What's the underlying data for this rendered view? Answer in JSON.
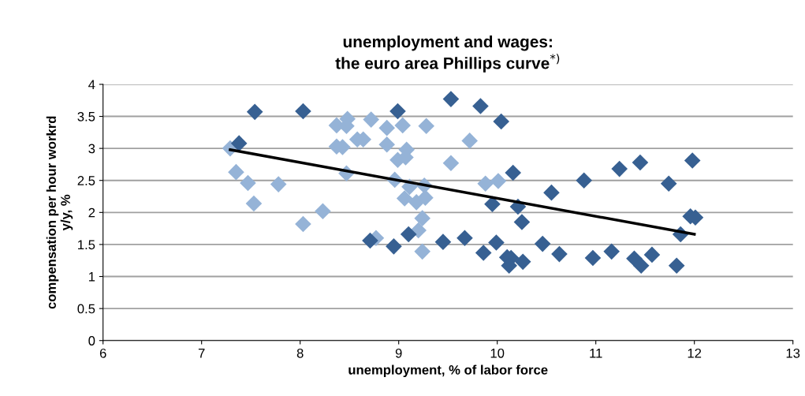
{
  "chart_data": {
    "type": "scatter",
    "title": "unemployment and wages:\nthe euro area Phillips curve$^{*)}$",
    "xlabel": "unemployment, % of labor force",
    "ylabel": "compensation per hour workrd\ny/y, %",
    "marker": "diamond",
    "grid": "y",
    "legend": false,
    "xlim": [
      6,
      13
    ],
    "xticks": [
      6,
      7,
      8,
      9,
      10,
      11,
      12,
      13
    ],
    "ylim": [
      0,
      4
    ],
    "yticks": [
      0,
      0.5,
      1,
      1.5,
      2,
      2.5,
      3,
      3.5,
      4
    ],
    "series": [
      {
        "color": "#95b3d7",
        "x": [
          7.29,
          7.35,
          7.47,
          7.53,
          7.78,
          8.03,
          8.23,
          8.37,
          8.47,
          8.48,
          8.37,
          8.43,
          8.47,
          8.58,
          8.64,
          8.72,
          8.88,
          9.04,
          8.88,
          8.96,
          8.99,
          9.07,
          9.06,
          8.77,
          9.28,
          9.08,
          9.11,
          9.26,
          9.18,
          9.27,
          9.24,
          9.2,
          9.24,
          9.53,
          9.72,
          9.88,
          10.01
        ],
        "values": [
          3.0,
          2.63,
          2.46,
          2.14,
          2.44,
          1.82,
          2.02,
          3.36,
          3.35,
          3.46,
          3.03,
          3.02,
          2.61,
          3.14,
          3.14,
          3.45,
          3.32,
          3.36,
          3.06,
          2.51,
          2.82,
          2.86,
          2.22,
          1.6,
          3.35,
          2.98,
          2.4,
          2.42,
          2.16,
          2.23,
          1.91,
          1.72,
          1.39,
          2.77,
          3.12,
          2.45,
          2.49
        ]
      },
      {
        "color": "#376092",
        "x": [
          7.38,
          7.54,
          8.03,
          8.99,
          8.71,
          8.95,
          9.1,
          9.53,
          9.83,
          10.04,
          10.16,
          9.95,
          10.21,
          10.25,
          10.55,
          10.88,
          9.45,
          9.67,
          9.86,
          9.99,
          10.1,
          10.14,
          10.12,
          10.26,
          10.46,
          10.63,
          10.97,
          11.24,
          11.45,
          11.74,
          11.98,
          11.96,
          12.01,
          11.86,
          11.16,
          11.39,
          11.46,
          11.57,
          11.82
        ],
        "values": [
          3.08,
          3.57,
          3.58,
          3.58,
          1.56,
          1.47,
          1.66,
          3.77,
          3.66,
          3.42,
          2.62,
          2.13,
          2.09,
          1.85,
          2.31,
          2.5,
          1.54,
          1.6,
          1.37,
          1.53,
          1.3,
          1.29,
          1.17,
          1.23,
          1.51,
          1.35,
          1.29,
          2.68,
          2.78,
          2.45,
          2.81,
          1.94,
          1.92,
          1.66,
          1.39,
          1.28,
          1.17,
          1.34,
          1.17
        ]
      },
      {
        "type": "line",
        "color": "#000000",
        "marker": "none",
        "x": [
          7.29,
          12.0
        ],
        "values": [
          2.98,
          1.66
        ]
      }
    ]
  }
}
